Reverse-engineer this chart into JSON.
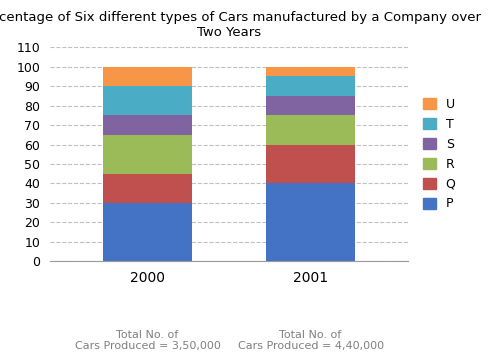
{
  "title": "Percentage of Six different types of Cars manufactured by a Company over\nTwo Years",
  "years": [
    "2000",
    "2001"
  ],
  "categories": [
    "P",
    "Q",
    "R",
    "S",
    "T",
    "U"
  ],
  "values": {
    "2000": [
      30,
      15,
      20,
      10,
      15,
      10
    ],
    "2001": [
      40,
      20,
      15,
      10,
      10,
      5
    ]
  },
  "colors": {
    "P": "#4472C4",
    "Q": "#C0504D",
    "R": "#9BBB59",
    "S": "#8064A2",
    "T": "#4BACC6",
    "U": "#F79646"
  },
  "ylim": [
    0,
    110
  ],
  "yticks": [
    0,
    10,
    20,
    30,
    40,
    50,
    60,
    70,
    80,
    90,
    100,
    110
  ],
  "xlabel_notes": [
    "Total No. of\nCars Produced = 3,50,000",
    "Total No. of\nCars Produced = 4,40,000"
  ],
  "xlabel_note_color": "#808080",
  "background_color": "#ffffff",
  "grid_color": "#C0C0C0"
}
